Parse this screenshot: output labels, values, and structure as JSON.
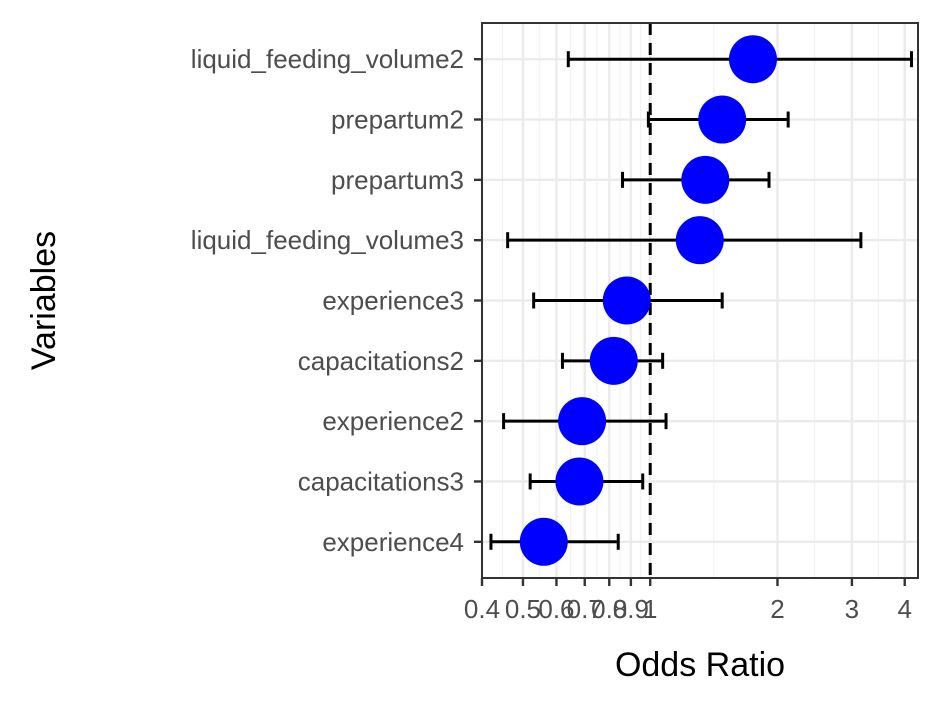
{
  "chart_data": {
    "type": "forest",
    "xlabel": "Odds Ratio",
    "ylabel": "Variables",
    "x_scale": "log",
    "xlim": [
      0.4,
      4.3
    ],
    "x_ticks": [
      0.4,
      0.5,
      0.6,
      0.7,
      0.8,
      0.9,
      1,
      2,
      3,
      4
    ],
    "x_tick_labels": [
      "0.4",
      "0.5",
      "0.6",
      "0.7",
      "0.8",
      "0.9",
      "1",
      "2",
      "3",
      "4"
    ],
    "reference_line": 1,
    "grid": true,
    "point_color": "#0000ff",
    "errorbar_color": "#000000",
    "categories": [
      "liquid_feeding_volume2",
      "prepartum2",
      "prepartum3",
      "liquid_feeding_volume3",
      "experience3",
      "capacitations2",
      "experience2",
      "capacitations3",
      "experience4"
    ],
    "estimates": [
      1.75,
      1.48,
      1.35,
      1.31,
      0.88,
      0.82,
      0.69,
      0.68,
      0.56
    ],
    "lower": [
      0.64,
      0.99,
      0.86,
      0.46,
      0.53,
      0.62,
      0.45,
      0.52,
      0.42
    ],
    "upper": [
      4.15,
      2.12,
      1.91,
      3.15,
      1.48,
      1.07,
      1.09,
      0.96,
      0.84
    ]
  }
}
